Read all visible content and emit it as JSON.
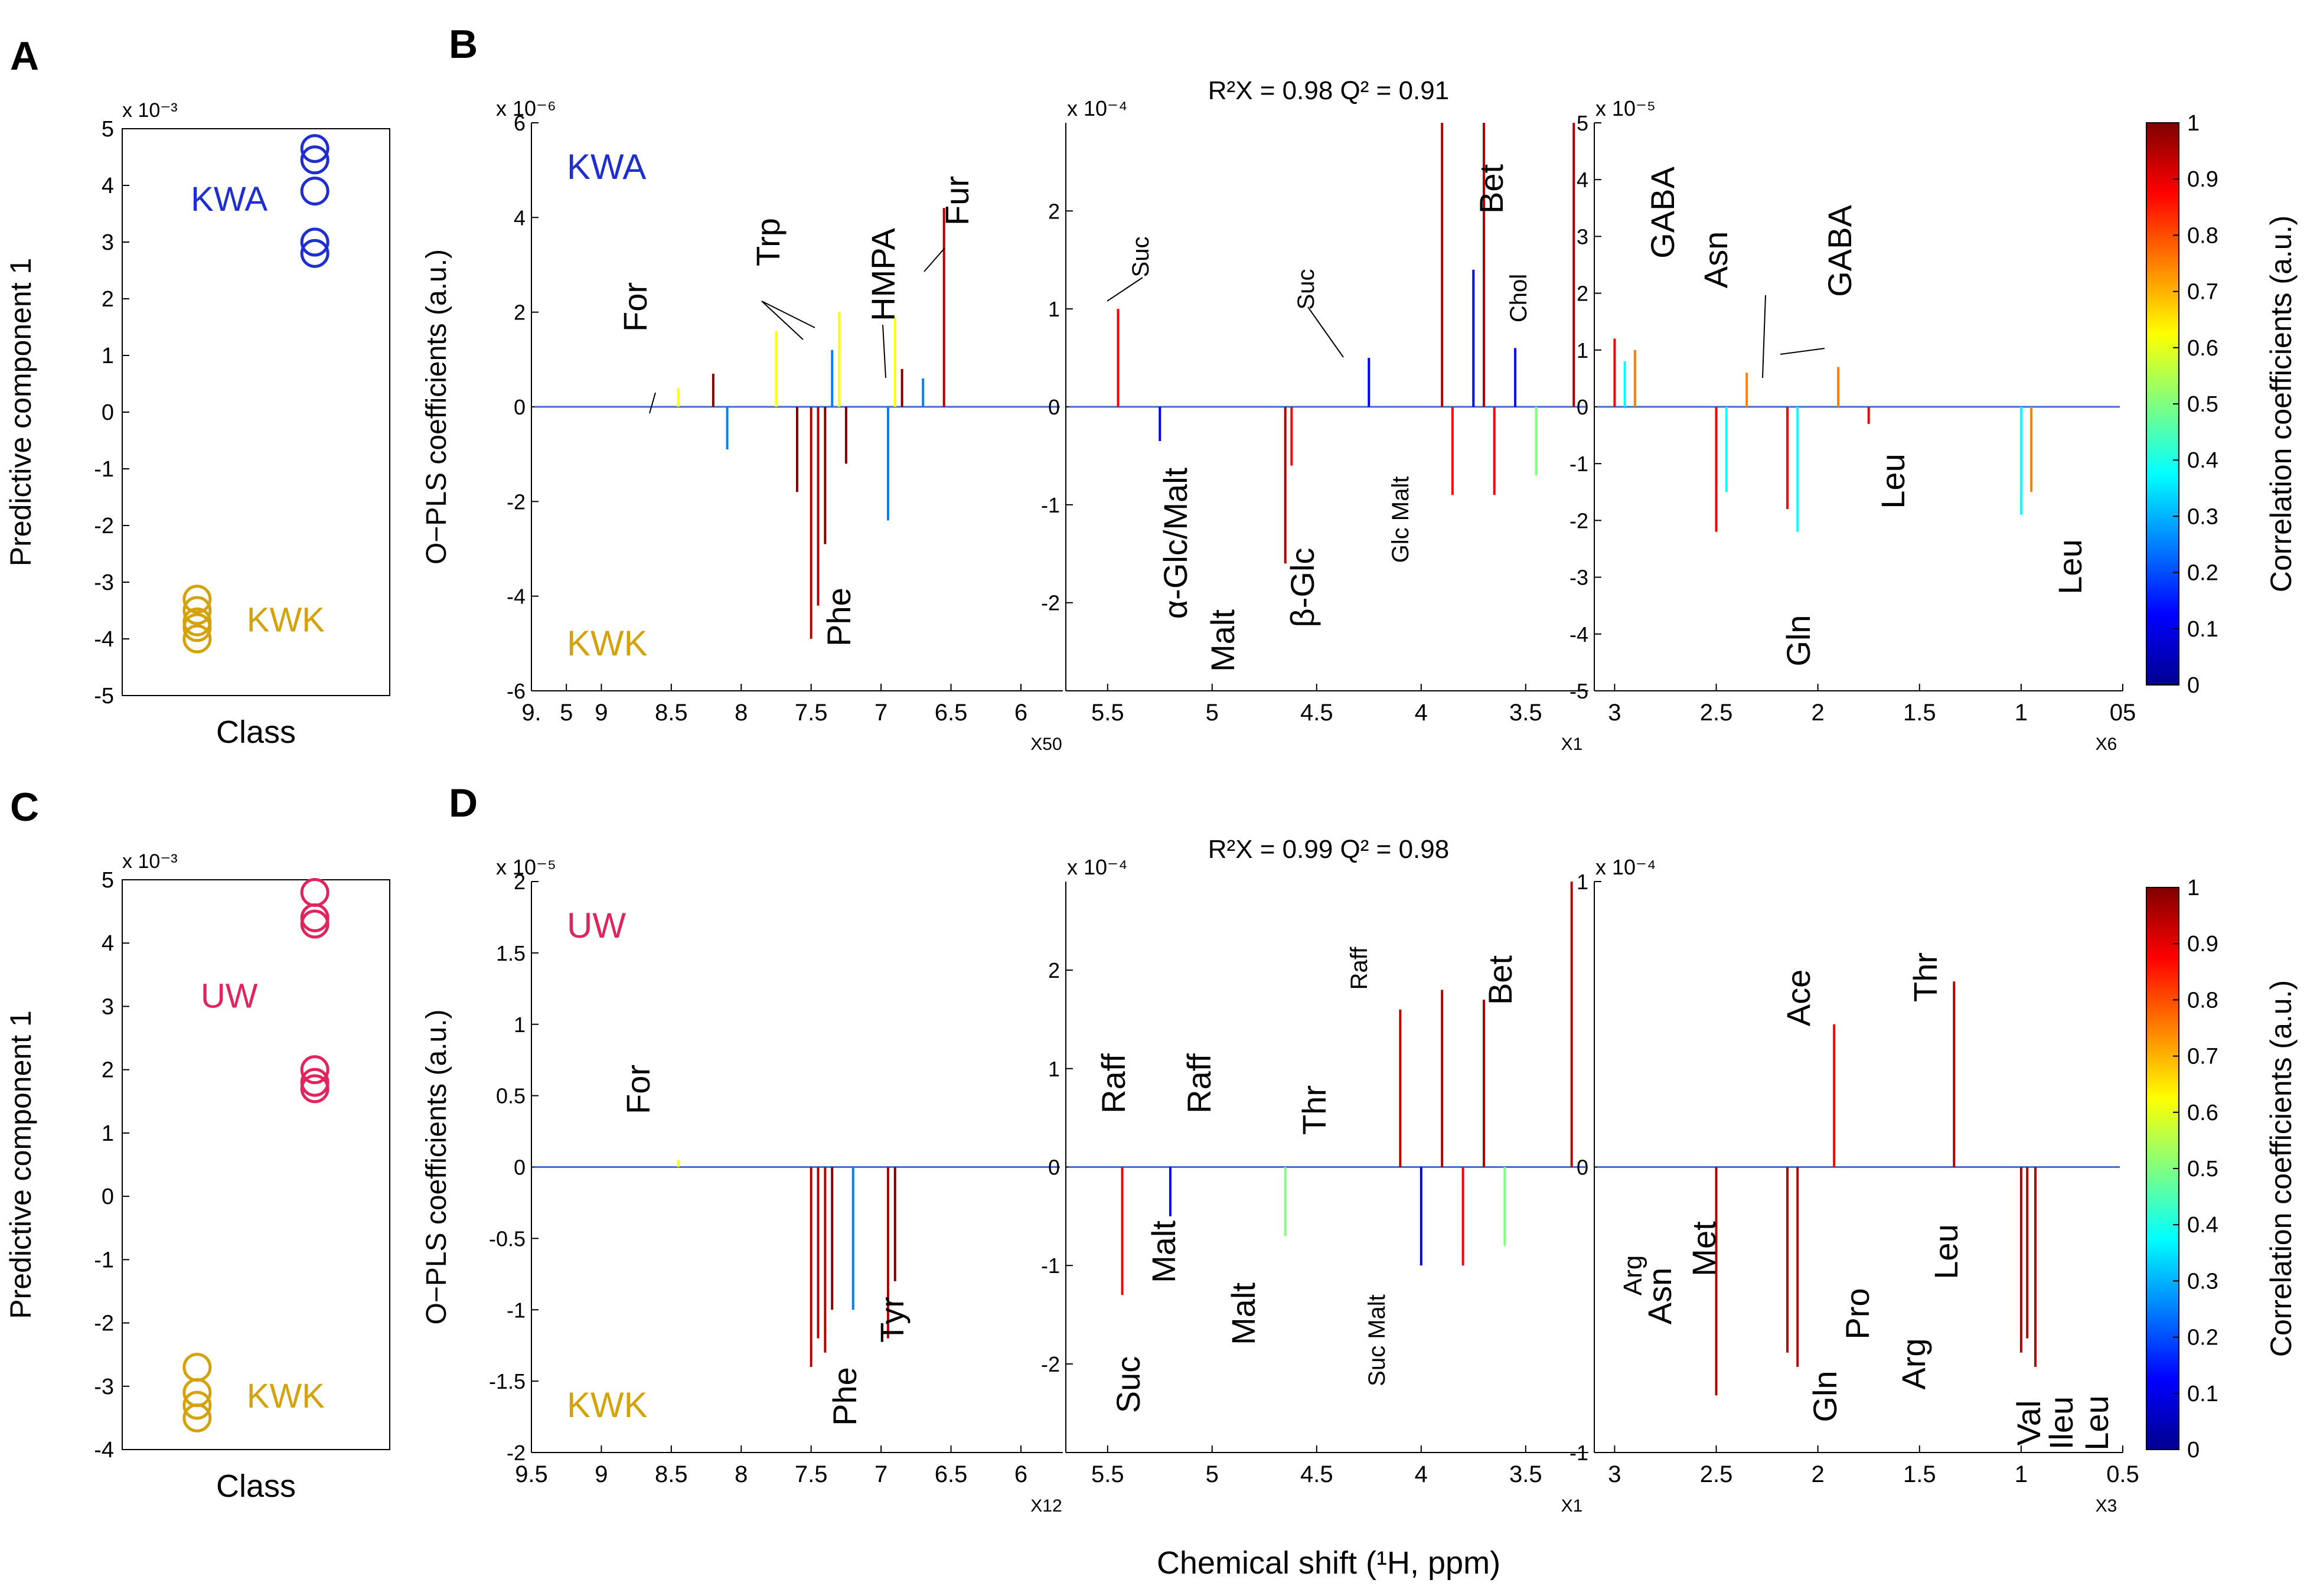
{
  "figure": {
    "xlabel": "Chemical shift (¹H, ppm)",
    "colorbar": {
      "label": "Correlation coefficients (a.u.)",
      "ticks": [
        "0",
        "0.1",
        "0.2",
        "0.3",
        "0.4",
        "0.5",
        "0.6",
        "0.7",
        "0.8",
        "0.9",
        "1"
      ],
      "colors": [
        "#00008f",
        "#0000ff",
        "#0080ff",
        "#00ffff",
        "#80ff80",
        "#ffff00",
        "#ff8000",
        "#ff0000",
        "#800000"
      ]
    }
  },
  "chart_data": [
    {
      "panel": "A",
      "type": "scatter",
      "letter": "A",
      "xlabel": "Class",
      "ylabel": "Predictive component 1",
      "scale": "x 10⁻³",
      "ylim": [
        -5,
        5
      ],
      "yticks": [
        "5",
        "4",
        "3",
        "2",
        "1",
        "0",
        "-1",
        "-2",
        "-3",
        "-4",
        "-5"
      ],
      "series": [
        {
          "name": "KWA",
          "color": "#1f2fcf",
          "x": 2,
          "values": [
            4.65,
            4.45,
            3.9,
            3.0,
            2.8
          ]
        },
        {
          "name": "KWK",
          "color": "#d4a20a",
          "x": 1,
          "values": [
            -3.3,
            -3.5,
            -3.7,
            -3.8,
            -4.0
          ]
        }
      ]
    },
    {
      "panel": "C",
      "type": "scatter",
      "letter": "C",
      "xlabel": "Class",
      "ylabel": "Predictive component 1",
      "scale": "x 10⁻³",
      "ylim": [
        -4,
        5
      ],
      "yticks": [
        "5",
        "4",
        "3",
        "2",
        "1",
        "0",
        "-1",
        "-2",
        "-3",
        "-4"
      ],
      "series": [
        {
          "name": "UW",
          "color": "#e0245e",
          "x": 2,
          "values": [
            4.8,
            4.4,
            4.3,
            2.0,
            1.8,
            1.7
          ]
        },
        {
          "name": "KWK",
          "color": "#d4a20a",
          "x": 1,
          "values": [
            -2.7,
            -3.1,
            -3.3,
            -3.5
          ]
        }
      ]
    },
    {
      "panel": "B",
      "type": "line",
      "letter": "B",
      "ylabel": "O−PLS coefficients (a.u.)",
      "stats": "R²X = 0.98   Q² = 0.91",
      "group_top": {
        "name": "KWA",
        "color": "#1f2fcf"
      },
      "group_bottom": {
        "name": "KWK",
        "color": "#d4a20a"
      },
      "segments": [
        {
          "scale": "x 10⁻⁶",
          "magnify": "X50",
          "xlim": [
            9.5,
            5.7
          ],
          "ylim": [
            -6,
            6
          ],
          "yticks": [
            "6",
            "4",
            "2",
            "0",
            "-2",
            "-4",
            "-6"
          ],
          "xticks": [
            "9.",
            "5",
            "9",
            "8.5",
            "8",
            "7.5",
            "7",
            "6.5",
            "6"
          ],
          "peaks": [
            [
              8.45,
              0.4
            ],
            [
              8.2,
              0.7
            ],
            [
              8.1,
              -0.9
            ],
            [
              7.75,
              1.6
            ],
            [
              7.6,
              -1.8
            ],
            [
              7.5,
              -4.9
            ],
            [
              7.45,
              -4.2
            ],
            [
              7.4,
              -2.9
            ],
            [
              7.35,
              1.2
            ],
            [
              7.3,
              2.0
            ],
            [
              7.25,
              -1.2
            ],
            [
              6.95,
              -2.4
            ],
            [
              6.9,
              1.9
            ],
            [
              6.85,
              0.8
            ],
            [
              6.7,
              0.6
            ],
            [
              6.55,
              4.2
            ]
          ],
          "labels": [
            "For",
            "Trp",
            "HMPA",
            "Fur",
            "Phe"
          ]
        },
        {
          "scale": "x 10⁻⁴",
          "magnify": "X1",
          "xlim": [
            5.7,
            3.2
          ],
          "ylim": [
            -2.9,
            2.9
          ],
          "yticks": [
            "2",
            "1",
            "0",
            "-1",
            "-2"
          ],
          "xticks": [
            "5.5",
            "5",
            "4.5",
            "4",
            "3.5"
          ],
          "peaks": [
            [
              5.45,
              1.0
            ],
            [
              5.25,
              -0.35
            ],
            [
              4.65,
              -1.6
            ],
            [
              4.62,
              -0.6
            ],
            [
              4.25,
              0.5
            ],
            [
              3.9,
              2.9
            ],
            [
              3.85,
              -0.9
            ],
            [
              3.75,
              1.4
            ],
            [
              3.7,
              2.9
            ],
            [
              3.65,
              -0.9
            ],
            [
              3.55,
              0.6
            ],
            [
              3.45,
              -0.7
            ],
            [
              3.27,
              2.9
            ]
          ],
          "labels": [
            "Suc",
            "Suc",
            "Chol",
            "Bet",
            "α-Glc/Malt",
            "Malt",
            "β-Glc",
            "Glc Malt"
          ]
        },
        {
          "scale": "x 10⁻⁵",
          "magnify": "X6",
          "xlim": [
            3.1,
            0.5
          ],
          "ylim": [
            -5,
            5
          ],
          "yticks": [
            "5",
            "4",
            "3",
            "2",
            "1",
            "0",
            "-1",
            "-2",
            "-3",
            "-4",
            "-5"
          ],
          "xticks": [
            "3",
            "2.5",
            "2",
            "1.5",
            "1",
            "05"
          ],
          "peaks": [
            [
              3.0,
              1.2
            ],
            [
              2.95,
              0.8
            ],
            [
              2.9,
              1.0
            ],
            [
              2.5,
              -2.2
            ],
            [
              2.45,
              -1.5
            ],
            [
              2.35,
              0.6
            ],
            [
              2.15,
              -1.8
            ],
            [
              2.1,
              -2.2
            ],
            [
              1.9,
              0.7
            ],
            [
              1.75,
              -0.3
            ],
            [
              1.0,
              -1.9
            ],
            [
              0.95,
              -1.5
            ]
          ],
          "labels": [
            "GABA",
            "Asn",
            "GABA",
            "Leu",
            "Leu",
            "Gln"
          ]
        }
      ]
    },
    {
      "panel": "D",
      "type": "line",
      "letter": "D",
      "ylabel": "O−PLS coefficients (a.u.)",
      "stats": "R²X = 0.99   Q² = 0.98",
      "group_top": {
        "name": "UW",
        "color": "#e0245e"
      },
      "group_bottom": {
        "name": "KWK",
        "color": "#d4a20a"
      },
      "segments": [
        {
          "scale": "x 10⁻⁵",
          "magnify": "X12",
          "xlim": [
            9.5,
            5.7
          ],
          "ylim": [
            -2,
            2
          ],
          "yticks": [
            "2",
            "1.5",
            "1",
            "0.5",
            "0",
            "-0.5",
            "-1",
            "-1.5",
            "-2"
          ],
          "xticks": [
            "9.5",
            "9",
            "8.5",
            "8",
            "7.5",
            "7",
            "6.5",
            "6"
          ],
          "peaks": [
            [
              8.45,
              0.05
            ],
            [
              7.5,
              -1.4
            ],
            [
              7.45,
              -1.2
            ],
            [
              7.4,
              -1.3
            ],
            [
              7.35,
              -1.0
            ],
            [
              7.2,
              -1.0
            ],
            [
              6.95,
              -1.2
            ],
            [
              6.9,
              -0.8
            ]
          ],
          "labels": [
            "For",
            "Phe",
            "Tyr"
          ]
        },
        {
          "scale": "x 10⁻⁴",
          "magnify": "X1",
          "xlim": [
            5.7,
            3.2
          ],
          "ylim": [
            -2.9,
            2.9
          ],
          "yticks": [
            "2",
            "1",
            "0",
            "-1",
            "-2"
          ],
          "xticks": [
            "5.5",
            "5",
            "4.5",
            "4",
            "3.5"
          ],
          "peaks": [
            [
              5.43,
              -1.3
            ],
            [
              5.2,
              -0.5
            ],
            [
              4.65,
              -0.7
            ],
            [
              4.1,
              1.6
            ],
            [
              4.0,
              -1.0
            ],
            [
              3.9,
              1.8
            ],
            [
              3.8,
              -1.0
            ],
            [
              3.7,
              1.7
            ],
            [
              3.6,
              -0.8
            ],
            [
              3.28,
              2.9
            ]
          ],
          "labels": [
            "Raff",
            "Raff",
            "Thr",
            "Raff",
            "Bet",
            "Suc",
            "Malt",
            "Malt",
            "Suc Malt"
          ]
        },
        {
          "scale": "x 10⁻⁴",
          "magnify": "X3",
          "xlim": [
            3.1,
            0.5
          ],
          "ylim": [
            -1,
            1
          ],
          "yticks": [
            "1",
            "0",
            "-1"
          ],
          "xticks": [
            "3",
            "2.5",
            "2",
            "1.5",
            "1",
            "0.5"
          ],
          "peaks": [
            [
              2.5,
              -0.8
            ],
            [
              2.15,
              -0.65
            ],
            [
              2.1,
              -0.7
            ],
            [
              1.92,
              0.5
            ],
            [
              1.33,
              0.65
            ],
            [
              1.0,
              -0.65
            ],
            [
              0.97,
              -0.6
            ],
            [
              0.93,
              -0.7
            ]
          ],
          "labels": [
            "Ace",
            "Thr",
            "Arg",
            "Asn",
            "Met",
            "Gln",
            "Pro",
            "Arg",
            "Leu",
            "Val",
            "Ileu",
            "Leu"
          ]
        }
      ]
    }
  ]
}
